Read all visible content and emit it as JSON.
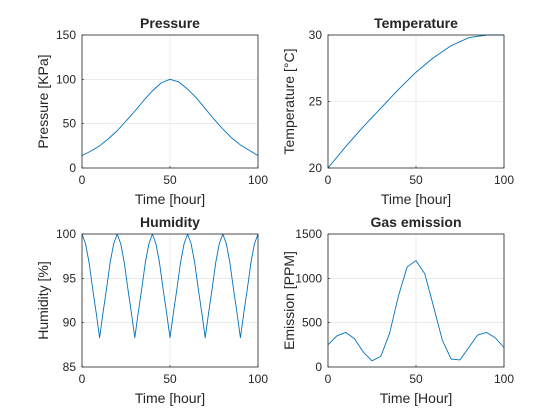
{
  "chart_data": [
    {
      "type": "line",
      "title": "Pressure",
      "xlabel": "Time [hour]",
      "ylabel": "Pressure [KPa]",
      "xlim": [
        0,
        100
      ],
      "ylim": [
        0,
        150
      ],
      "xticks": [
        0,
        50,
        100
      ],
      "yticks": [
        0,
        50,
        100,
        150
      ],
      "grid": true,
      "series": [
        {
          "color": "#0072BD",
          "x": [
            0,
            5,
            10,
            15,
            20,
            25,
            30,
            35,
            40,
            45,
            50,
            55,
            60,
            65,
            70,
            75,
            80,
            85,
            90,
            95,
            100
          ],
          "y": [
            14,
            19,
            25,
            33,
            42,
            53,
            64,
            76,
            87,
            96,
            100,
            97,
            89,
            79,
            67,
            55,
            44,
            34,
            26,
            20,
            14
          ]
        }
      ]
    },
    {
      "type": "line",
      "title": "Temperature",
      "xlabel": "Time [hour]",
      "ylabel": "Temperature [°C]",
      "xlim": [
        0,
        100
      ],
      "ylim": [
        20,
        30
      ],
      "xticks": [
        0,
        50,
        100
      ],
      "yticks": [
        20,
        25,
        30
      ],
      "grid": true,
      "series": [
        {
          "color": "#0072BD",
          "x": [
            0,
            10,
            20,
            30,
            40,
            50,
            60,
            70,
            80,
            90,
            100
          ],
          "y": [
            20.0,
            21.6,
            23.1,
            24.5,
            25.9,
            27.2,
            28.3,
            29.2,
            29.8,
            30.0,
            30.0
          ]
        }
      ]
    },
    {
      "type": "line",
      "title": "Humidity",
      "xlabel": "Time [hour]",
      "ylabel": "Humidity [%]",
      "xlim": [
        0,
        100
      ],
      "ylim": [
        85,
        100
      ],
      "xticks": [
        0,
        50,
        100
      ],
      "yticks": [
        85,
        90,
        95,
        100
      ],
      "grid": true,
      "series": [
        {
          "color": "#0072BD",
          "x": [
            0,
            2,
            4,
            6,
            8,
            10,
            12,
            14,
            16,
            18,
            20,
            22,
            24,
            26,
            28,
            30,
            32,
            34,
            36,
            38,
            40,
            42,
            44,
            46,
            48,
            50,
            52,
            54,
            56,
            58,
            60,
            62,
            64,
            66,
            68,
            70,
            72,
            74,
            76,
            78,
            80,
            82,
            84,
            86,
            88,
            90,
            92,
            94,
            96,
            98,
            100
          ],
          "y": [
            100,
            98.9,
            96.8,
            93.9,
            91.2,
            88.3,
            91.2,
            93.9,
            96.8,
            98.9,
            100,
            98.9,
            96.8,
            93.9,
            91.2,
            88.3,
            91.2,
            93.9,
            96.8,
            98.9,
            100,
            98.9,
            96.8,
            93.9,
            91.2,
            88.3,
            91.2,
            93.9,
            96.8,
            98.9,
            100,
            98.9,
            96.8,
            93.9,
            91.2,
            88.3,
            91.2,
            93.9,
            96.8,
            98.9,
            100,
            98.9,
            96.8,
            93.9,
            91.2,
            88.3,
            91.2,
            93.9,
            96.8,
            98.9,
            100
          ]
        }
      ]
    },
    {
      "type": "line",
      "title": "Gas emission",
      "xlabel": "Time [Hour]",
      "ylabel": "Emission [PPM]",
      "xlim": [
        0,
        100
      ],
      "ylim": [
        0,
        1500
      ],
      "xticks": [
        0,
        50,
        100
      ],
      "yticks": [
        0,
        500,
        1000,
        1500
      ],
      "grid": true,
      "series": [
        {
          "color": "#0072BD",
          "x": [
            0,
            5,
            10,
            15,
            20,
            25,
            30,
            35,
            40,
            45,
            50,
            55,
            60,
            65,
            70,
            75,
            80,
            85,
            90,
            95,
            100
          ],
          "y": [
            250,
            350,
            390,
            320,
            170,
            70,
            120,
            380,
            800,
            1130,
            1200,
            1050,
            680,
            300,
            90,
            80,
            220,
            360,
            390,
            330,
            220
          ]
        }
      ]
    }
  ]
}
